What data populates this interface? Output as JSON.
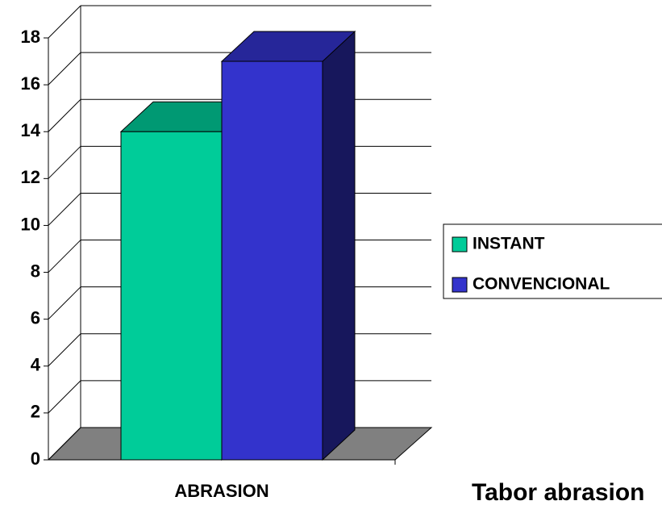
{
  "chart_data": {
    "type": "bar3d",
    "categories": [
      "ABRASION"
    ],
    "series": [
      {
        "name": "INSTANT",
        "color": "#00cc99",
        "values": [
          14
        ]
      },
      {
        "name": "CONVENCIONAL",
        "color": "#3333cc",
        "values": [
          17
        ]
      }
    ],
    "ylim": [
      0,
      18
    ],
    "yticks": [
      0,
      2,
      4,
      6,
      8,
      10,
      12,
      14,
      16,
      18
    ],
    "grid": true,
    "legend": "right",
    "annotation": "Tabor abrasion"
  }
}
